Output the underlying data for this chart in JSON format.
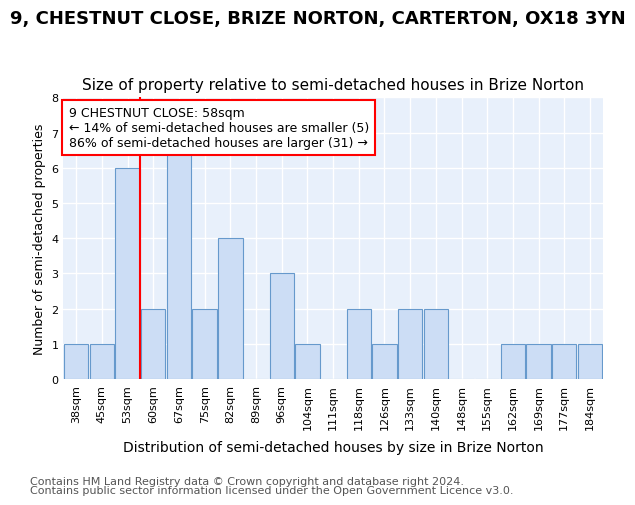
{
  "title": "9, CHESTNUT CLOSE, BRIZE NORTON, CARTERTON, OX18 3YN",
  "subtitle": "Size of property relative to semi-detached houses in Brize Norton",
  "xlabel": "Distribution of semi-detached houses by size in Brize Norton",
  "ylabel": "Number of semi-detached properties",
  "footer1": "Contains HM Land Registry data © Crown copyright and database right 2024.",
  "footer2": "Contains public sector information licensed under the Open Government Licence v3.0.",
  "categories": [
    "38sqm",
    "45sqm",
    "53sqm",
    "60sqm",
    "67sqm",
    "75sqm",
    "82sqm",
    "89sqm",
    "96sqm",
    "104sqm",
    "111sqm",
    "118sqm",
    "126sqm",
    "133sqm",
    "140sqm",
    "148sqm",
    "155sqm",
    "162sqm",
    "169sqm",
    "177sqm",
    "184sqm"
  ],
  "values": [
    1,
    1,
    6,
    2,
    7,
    2,
    4,
    0,
    3,
    1,
    0,
    2,
    1,
    2,
    2,
    0,
    0,
    1,
    1,
    1,
    1
  ],
  "bar_color": "#ccddf5",
  "bar_edge_color": "#6699cc",
  "red_line_bar_index": 2,
  "annotation_text": "9 CHESTNUT CLOSE: 58sqm\n← 14% of semi-detached houses are smaller (5)\n86% of semi-detached houses are larger (31) →",
  "annotation_box_color": "white",
  "annotation_box_edge_color": "red",
  "ylim": [
    0,
    8
  ],
  "yticks": [
    0,
    1,
    2,
    3,
    4,
    5,
    6,
    7,
    8
  ],
  "title_fontsize": 13,
  "subtitle_fontsize": 11,
  "ylabel_fontsize": 9,
  "xlabel_fontsize": 10,
  "tick_fontsize": 8,
  "footer_fontsize": 8,
  "background_color": "#ffffff",
  "plot_bg_color": "#e8f0fb"
}
